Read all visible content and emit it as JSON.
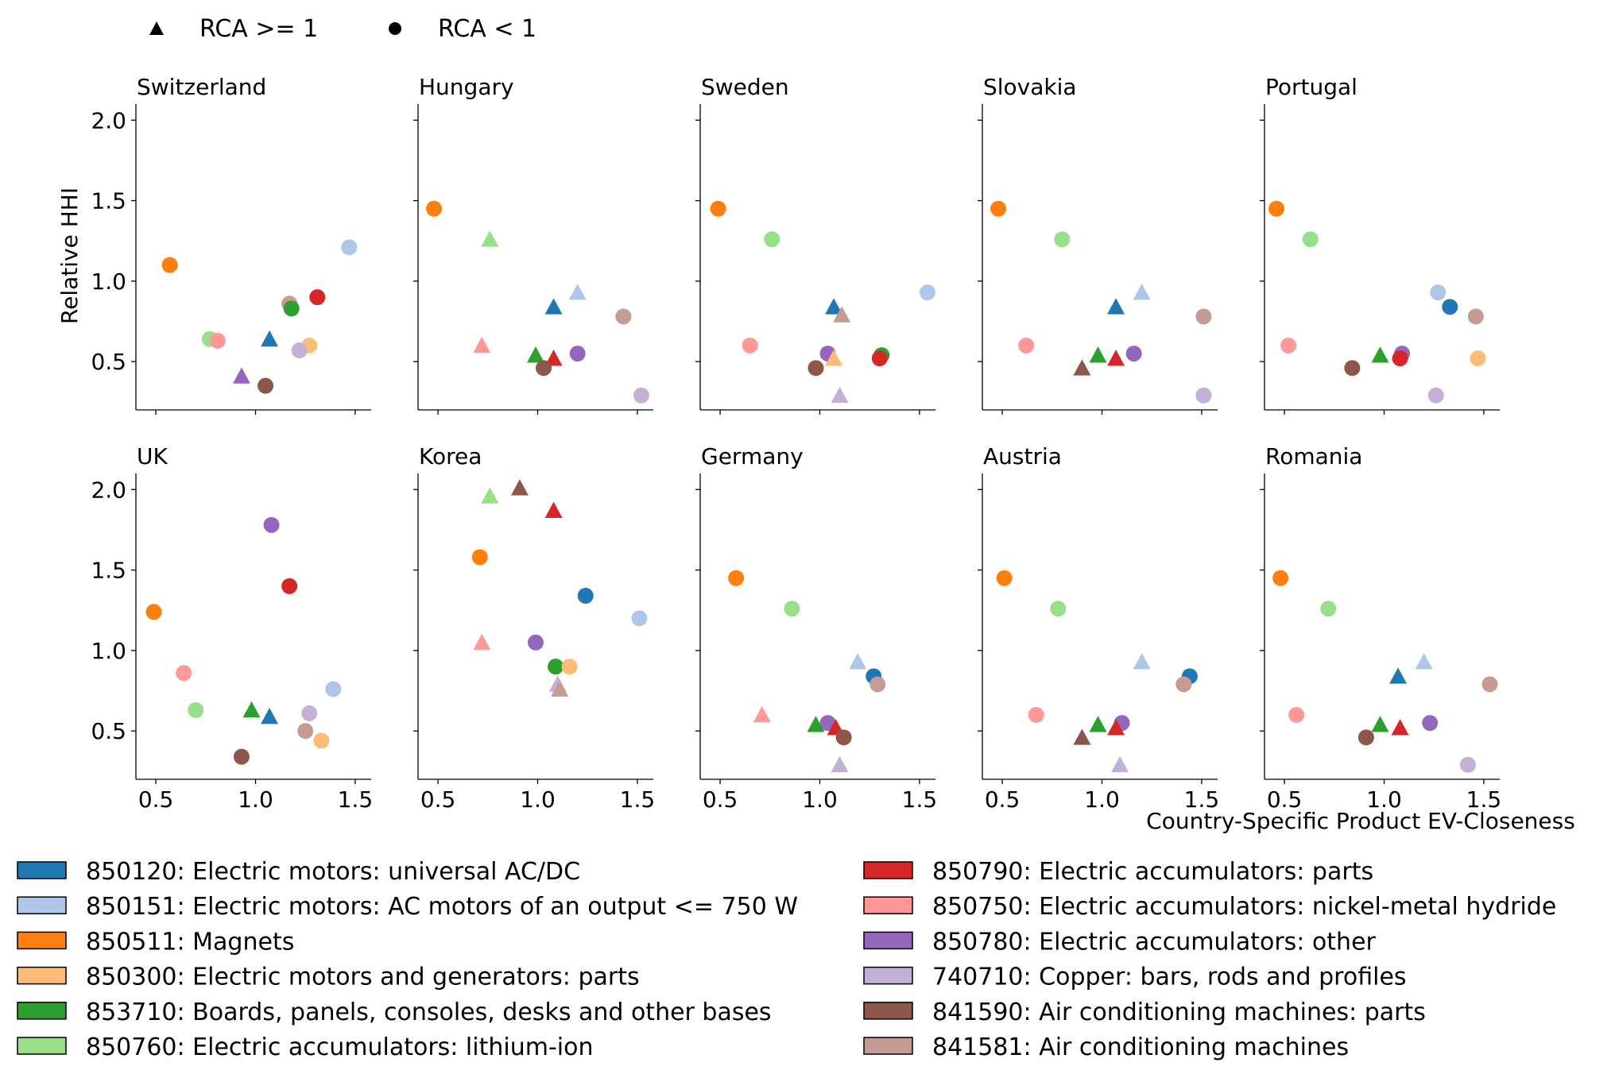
{
  "chart_data": {
    "type": "scatter",
    "xlabel": "Country-Specific Product EV-Closeness",
    "ylabel": "Relative HHI",
    "xlim": [
      0.4,
      1.58
    ],
    "ylim": [
      0.2,
      2.1
    ],
    "xticks": [
      "0.5",
      "1.0",
      "1.5"
    ],
    "yticks": [
      "0.5",
      "1.0",
      "1.5",
      "2.0"
    ],
    "marker_legend": [
      {
        "marker": "triangle",
        "label": "RCA >= 1"
      },
      {
        "marker": "circle",
        "label": "RCA < 1"
      }
    ],
    "products": [
      {
        "code": "850120",
        "label": "850120: Electric motors: universal AC/DC",
        "color": "#1f77b4"
      },
      {
        "code": "850151",
        "label": "850151: Electric motors: AC motors of an output <= 750 W",
        "color": "#aec7e8"
      },
      {
        "code": "850511",
        "label": "850511: Magnets",
        "color": "#ff7f0e"
      },
      {
        "code": "850300",
        "label": "850300: Electric motors and generators: parts",
        "color": "#ffbb78"
      },
      {
        "code": "853710",
        "label": "853710: Boards, panels, consoles, desks and other bases",
        "color": "#2ca02c"
      },
      {
        "code": "850760",
        "label": "850760: Electric accumulators: lithium-ion",
        "color": "#98df8a"
      },
      {
        "code": "850790",
        "label": "850790: Electric accumulators: parts",
        "color": "#d62728"
      },
      {
        "code": "850750",
        "label": "850750: Electric accumulators: nickel-metal hydride",
        "color": "#ff9896"
      },
      {
        "code": "850780",
        "label": "850780: Electric accumulators: other",
        "color": "#9467bd"
      },
      {
        "code": "740710",
        "label": "740710: Copper: bars, rods and profiles",
        "color": "#c5b0d5"
      },
      {
        "code": "841590",
        "label": "841590: Air conditioning machines: parts",
        "color": "#8c564b"
      },
      {
        "code": "841581",
        "label": "841581: Air conditioning machines",
        "color": "#c49c94"
      }
    ],
    "panels": [
      {
        "country": "Switzerland",
        "points": [
          {
            "p": "850511",
            "x": 0.57,
            "y": 1.1,
            "m": "o"
          },
          {
            "p": "850151",
            "x": 1.47,
            "y": 1.21,
            "m": "o"
          },
          {
            "p": "850790",
            "x": 1.31,
            "y": 0.9,
            "m": "o"
          },
          {
            "p": "841581",
            "x": 1.17,
            "y": 0.86,
            "m": "o"
          },
          {
            "p": "853710",
            "x": 1.18,
            "y": 0.83,
            "m": "o"
          },
          {
            "p": "850760",
            "x": 0.77,
            "y": 0.64,
            "m": "o"
          },
          {
            "p": "850750",
            "x": 0.81,
            "y": 0.63,
            "m": "o"
          },
          {
            "p": "850120",
            "x": 1.07,
            "y": 0.64,
            "m": "^"
          },
          {
            "p": "850300",
            "x": 1.27,
            "y": 0.6,
            "m": "o"
          },
          {
            "p": "740710",
            "x": 1.22,
            "y": 0.57,
            "m": "o"
          },
          {
            "p": "850780",
            "x": 0.93,
            "y": 0.41,
            "m": "^"
          },
          {
            "p": "841590",
            "x": 1.05,
            "y": 0.35,
            "m": "o"
          }
        ]
      },
      {
        "country": "Hungary",
        "points": [
          {
            "p": "850511",
            "x": 0.48,
            "y": 1.45,
            "m": "o"
          },
          {
            "p": "850760",
            "x": 0.76,
            "y": 1.26,
            "m": "^"
          },
          {
            "p": "850151",
            "x": 1.2,
            "y": 0.93,
            "m": "^"
          },
          {
            "p": "850120",
            "x": 1.08,
            "y": 0.84,
            "m": "^"
          },
          {
            "p": "841581",
            "x": 1.43,
            "y": 0.78,
            "m": "o"
          },
          {
            "p": "850750",
            "x": 0.72,
            "y": 0.6,
            "m": "^"
          },
          {
            "p": "850780",
            "x": 1.2,
            "y": 0.55,
            "m": "o"
          },
          {
            "p": "853710",
            "x": 0.99,
            "y": 0.54,
            "m": "^"
          },
          {
            "p": "850790",
            "x": 1.08,
            "y": 0.52,
            "m": "^"
          },
          {
            "p": "841590",
            "x": 1.03,
            "y": 0.46,
            "m": "o"
          },
          {
            "p": "740710",
            "x": 1.52,
            "y": 0.29,
            "m": "o"
          }
        ]
      },
      {
        "country": "Sweden",
        "points": [
          {
            "p": "850511",
            "x": 0.49,
            "y": 1.45,
            "m": "o"
          },
          {
            "p": "850760",
            "x": 0.76,
            "y": 1.26,
            "m": "o"
          },
          {
            "p": "850151",
            "x": 1.54,
            "y": 0.93,
            "m": "o"
          },
          {
            "p": "850120",
            "x": 1.07,
            "y": 0.84,
            "m": "^"
          },
          {
            "p": "841581",
            "x": 1.11,
            "y": 0.79,
            "m": "^"
          },
          {
            "p": "850750",
            "x": 0.65,
            "y": 0.6,
            "m": "o"
          },
          {
            "p": "850780",
            "x": 1.04,
            "y": 0.55,
            "m": "o"
          },
          {
            "p": "850300",
            "x": 1.07,
            "y": 0.52,
            "m": "^"
          },
          {
            "p": "853710",
            "x": 1.31,
            "y": 0.54,
            "m": "o"
          },
          {
            "p": "850790",
            "x": 1.3,
            "y": 0.52,
            "m": "o"
          },
          {
            "p": "841590",
            "x": 0.98,
            "y": 0.46,
            "m": "o"
          },
          {
            "p": "740710",
            "x": 1.1,
            "y": 0.29,
            "m": "^"
          }
        ]
      },
      {
        "country": "Slovakia",
        "points": [
          {
            "p": "850511",
            "x": 0.48,
            "y": 1.45,
            "m": "o"
          },
          {
            "p": "850760",
            "x": 0.8,
            "y": 1.26,
            "m": "o"
          },
          {
            "p": "850151",
            "x": 1.2,
            "y": 0.93,
            "m": "^"
          },
          {
            "p": "850120",
            "x": 1.07,
            "y": 0.84,
            "m": "^"
          },
          {
            "p": "841581",
            "x": 1.51,
            "y": 0.78,
            "m": "o"
          },
          {
            "p": "850750",
            "x": 0.62,
            "y": 0.6,
            "m": "o"
          },
          {
            "p": "850780",
            "x": 1.16,
            "y": 0.55,
            "m": "o"
          },
          {
            "p": "853710",
            "x": 0.98,
            "y": 0.54,
            "m": "^"
          },
          {
            "p": "850790",
            "x": 1.07,
            "y": 0.52,
            "m": "^"
          },
          {
            "p": "841590",
            "x": 0.9,
            "y": 0.46,
            "m": "^"
          },
          {
            "p": "740710",
            "x": 1.51,
            "y": 0.29,
            "m": "o"
          }
        ]
      },
      {
        "country": "Portugal",
        "points": [
          {
            "p": "850511",
            "x": 0.46,
            "y": 1.45,
            "m": "o"
          },
          {
            "p": "850760",
            "x": 0.63,
            "y": 1.26,
            "m": "o"
          },
          {
            "p": "850151",
            "x": 1.27,
            "y": 0.93,
            "m": "o"
          },
          {
            "p": "850120",
            "x": 1.33,
            "y": 0.84,
            "m": "o"
          },
          {
            "p": "841581",
            "x": 1.46,
            "y": 0.78,
            "m": "o"
          },
          {
            "p": "850750",
            "x": 0.52,
            "y": 0.6,
            "m": "o"
          },
          {
            "p": "850780",
            "x": 1.09,
            "y": 0.55,
            "m": "o"
          },
          {
            "p": "853710",
            "x": 0.98,
            "y": 0.54,
            "m": "^"
          },
          {
            "p": "850790",
            "x": 1.08,
            "y": 0.52,
            "m": "o"
          },
          {
            "p": "850300",
            "x": 1.47,
            "y": 0.52,
            "m": "o"
          },
          {
            "p": "841590",
            "x": 0.84,
            "y": 0.46,
            "m": "o"
          },
          {
            "p": "740710",
            "x": 1.26,
            "y": 0.29,
            "m": "o"
          }
        ]
      },
      {
        "country": "UK",
        "points": [
          {
            "p": "850780",
            "x": 1.08,
            "y": 1.78,
            "m": "o"
          },
          {
            "p": "850790",
            "x": 1.17,
            "y": 1.4,
            "m": "o"
          },
          {
            "p": "850511",
            "x": 0.49,
            "y": 1.24,
            "m": "o"
          },
          {
            "p": "850750",
            "x": 0.64,
            "y": 0.86,
            "m": "o"
          },
          {
            "p": "850151",
            "x": 1.39,
            "y": 0.76,
            "m": "o"
          },
          {
            "p": "850760",
            "x": 0.7,
            "y": 0.63,
            "m": "o"
          },
          {
            "p": "853710",
            "x": 0.98,
            "y": 0.63,
            "m": "^"
          },
          {
            "p": "740710",
            "x": 1.27,
            "y": 0.61,
            "m": "o"
          },
          {
            "p": "850120",
            "x": 1.07,
            "y": 0.59,
            "m": "^"
          },
          {
            "p": "841581",
            "x": 1.25,
            "y": 0.5,
            "m": "o"
          },
          {
            "p": "850300",
            "x": 1.33,
            "y": 0.44,
            "m": "o"
          },
          {
            "p": "841590",
            "x": 0.93,
            "y": 0.34,
            "m": "o"
          }
        ]
      },
      {
        "country": "Korea",
        "points": [
          {
            "p": "841590",
            "x": 0.91,
            "y": 2.01,
            "m": "^"
          },
          {
            "p": "850760",
            "x": 0.76,
            "y": 1.96,
            "m": "^"
          },
          {
            "p": "850790",
            "x": 1.08,
            "y": 1.87,
            "m": "^"
          },
          {
            "p": "850511",
            "x": 0.71,
            "y": 1.58,
            "m": "o"
          },
          {
            "p": "850120",
            "x": 1.24,
            "y": 1.34,
            "m": "o"
          },
          {
            "p": "850151",
            "x": 1.51,
            "y": 1.2,
            "m": "o"
          },
          {
            "p": "850750",
            "x": 0.72,
            "y": 1.05,
            "m": "^"
          },
          {
            "p": "850780",
            "x": 0.99,
            "y": 1.05,
            "m": "o"
          },
          {
            "p": "853710",
            "x": 1.09,
            "y": 0.9,
            "m": "o"
          },
          {
            "p": "850300",
            "x": 1.16,
            "y": 0.9,
            "m": "o"
          },
          {
            "p": "740710",
            "x": 1.1,
            "y": 0.79,
            "m": "^"
          },
          {
            "p": "841581",
            "x": 1.11,
            "y": 0.76,
            "m": "^"
          }
        ]
      },
      {
        "country": "Germany",
        "points": [
          {
            "p": "850511",
            "x": 0.58,
            "y": 1.45,
            "m": "o"
          },
          {
            "p": "850760",
            "x": 0.86,
            "y": 1.26,
            "m": "o"
          },
          {
            "p": "850151",
            "x": 1.19,
            "y": 0.93,
            "m": "^"
          },
          {
            "p": "850120",
            "x": 1.27,
            "y": 0.84,
            "m": "o"
          },
          {
            "p": "841581",
            "x": 1.29,
            "y": 0.79,
            "m": "o"
          },
          {
            "p": "850750",
            "x": 0.71,
            "y": 0.6,
            "m": "^"
          },
          {
            "p": "850780",
            "x": 1.04,
            "y": 0.55,
            "m": "o"
          },
          {
            "p": "853710",
            "x": 0.98,
            "y": 0.54,
            "m": "^"
          },
          {
            "p": "850790",
            "x": 1.08,
            "y": 0.52,
            "m": "^"
          },
          {
            "p": "841590",
            "x": 1.12,
            "y": 0.46,
            "m": "o"
          },
          {
            "p": "740710",
            "x": 1.1,
            "y": 0.29,
            "m": "^"
          }
        ]
      },
      {
        "country": "Austria",
        "points": [
          {
            "p": "850511",
            "x": 0.51,
            "y": 1.45,
            "m": "o"
          },
          {
            "p": "850760",
            "x": 0.78,
            "y": 1.26,
            "m": "o"
          },
          {
            "p": "850151",
            "x": 1.2,
            "y": 0.93,
            "m": "^"
          },
          {
            "p": "850120",
            "x": 1.44,
            "y": 0.84,
            "m": "o"
          },
          {
            "p": "841581",
            "x": 1.41,
            "y": 0.79,
            "m": "o"
          },
          {
            "p": "850750",
            "x": 0.67,
            "y": 0.6,
            "m": "o"
          },
          {
            "p": "850780",
            "x": 1.1,
            "y": 0.55,
            "m": "o"
          },
          {
            "p": "853710",
            "x": 0.98,
            "y": 0.54,
            "m": "^"
          },
          {
            "p": "850790",
            "x": 1.07,
            "y": 0.52,
            "m": "^"
          },
          {
            "p": "841590",
            "x": 0.9,
            "y": 0.46,
            "m": "^"
          },
          {
            "p": "740710",
            "x": 1.09,
            "y": 0.29,
            "m": "^"
          }
        ]
      },
      {
        "country": "Romania",
        "points": [
          {
            "p": "850511",
            "x": 0.48,
            "y": 1.45,
            "m": "o"
          },
          {
            "p": "850760",
            "x": 0.72,
            "y": 1.26,
            "m": "o"
          },
          {
            "p": "850151",
            "x": 1.2,
            "y": 0.93,
            "m": "^"
          },
          {
            "p": "850120",
            "x": 1.07,
            "y": 0.84,
            "m": "^"
          },
          {
            "p": "841581",
            "x": 1.53,
            "y": 0.79,
            "m": "o"
          },
          {
            "p": "850750",
            "x": 0.56,
            "y": 0.6,
            "m": "o"
          },
          {
            "p": "850780",
            "x": 1.23,
            "y": 0.55,
            "m": "o"
          },
          {
            "p": "853710",
            "x": 0.98,
            "y": 0.54,
            "m": "^"
          },
          {
            "p": "850790",
            "x": 1.08,
            "y": 0.52,
            "m": "^"
          },
          {
            "p": "841590",
            "x": 0.91,
            "y": 0.46,
            "m": "o"
          },
          {
            "p": "740710",
            "x": 1.42,
            "y": 0.29,
            "m": "o"
          }
        ]
      }
    ]
  }
}
